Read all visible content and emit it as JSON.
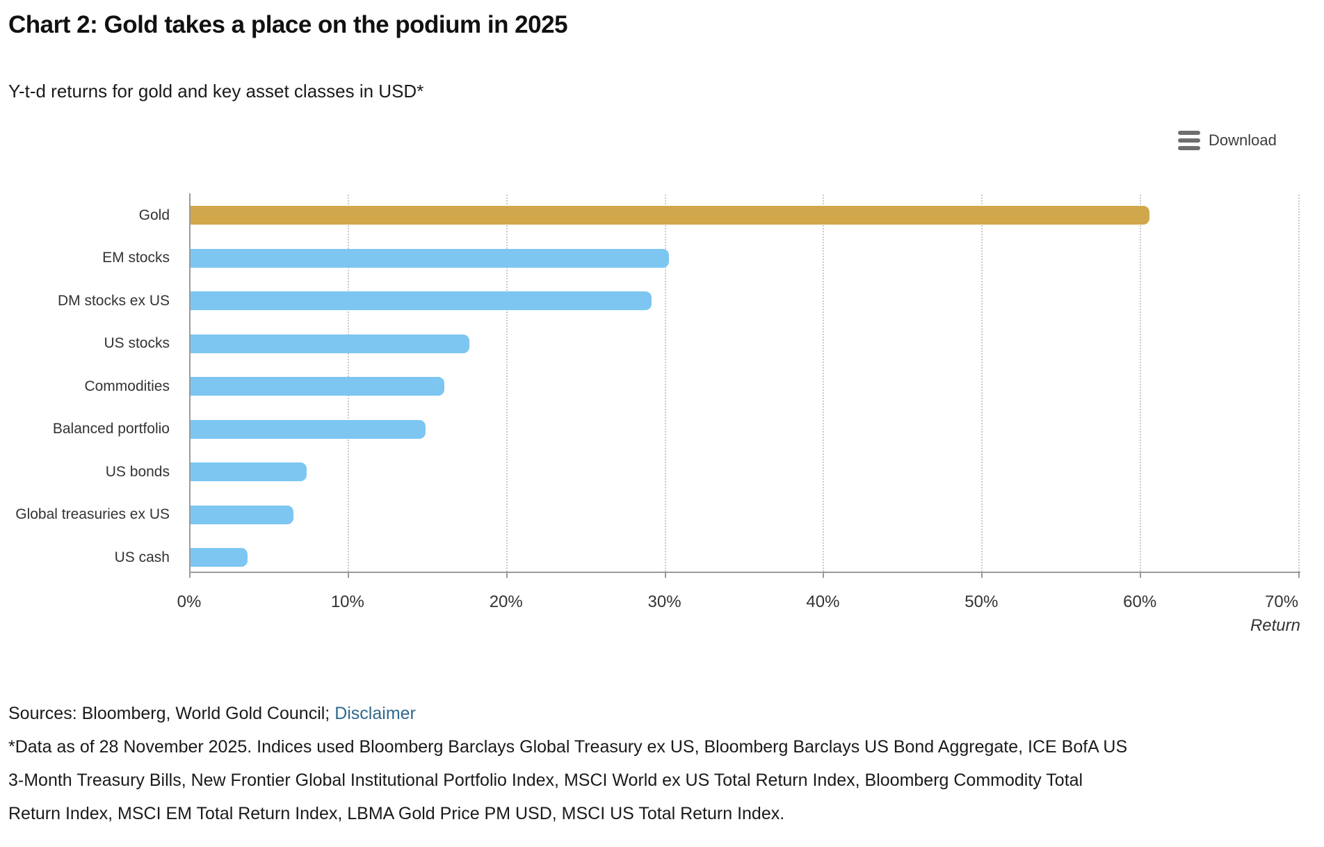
{
  "header": {
    "title": "Chart 2: Gold takes a place on the podium in 2025",
    "subtitle": "Y-t-d returns for gold and key asset classes in USD*"
  },
  "toolbar": {
    "download_label": "Download"
  },
  "chart_data": {
    "type": "bar",
    "orientation": "horizontal",
    "title": "Chart 2: Gold takes a place on the podium in 2025",
    "subtitle": "Y-t-d returns for gold and key asset classes in USD*",
    "categories": [
      "Gold",
      "EM stocks",
      "DM stocks ex US",
      "US stocks",
      "Commodities",
      "Balanced portfolio",
      "US bonds",
      "Global treasuries ex US",
      "US cash"
    ],
    "values": [
      60.6,
      30.3,
      29.2,
      17.7,
      16.1,
      14.9,
      7.4,
      6.6,
      3.7
    ],
    "xlabel": "Return",
    "x_ticks": [
      "0%",
      "10%",
      "20%",
      "30%",
      "40%",
      "50%",
      "60%",
      "70%"
    ],
    "xlim": [
      0,
      70
    ],
    "grid": "vertical-dotted",
    "colors": {
      "highlight": "#d1a74c",
      "default": "#7dc6f2",
      "highlight_category": "Gold",
      "axis": "#9a9a9a",
      "gridline": "#c9c9c9"
    }
  },
  "footer": {
    "sources_text": "Sources: Bloomberg, World Gold Council;",
    "disclaimer_link": "Disclaimer",
    "footnote_lines": [
      "*Data as of 28 November 2025. Indices used Bloomberg Barclays Global Treasury ex US, Bloomberg Barclays US Bond Aggregate, ICE BofA US",
      "3-Month Treasury Bills, New Frontier Global Institutional Portfolio Index, MSCI World ex US Total Return Index, Bloomberg Commodity Total",
      "Return Index, MSCI EM Total Return Index, LBMA Gold Price PM USD, MSCI US Total Return Index."
    ]
  }
}
